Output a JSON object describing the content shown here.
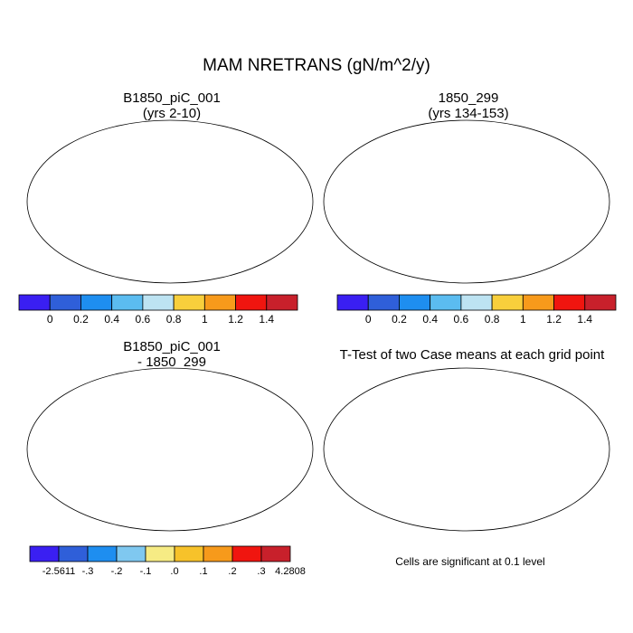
{
  "figure": {
    "title": "MAM NRETRANS (gN/m^2/y)"
  },
  "panels": [
    {
      "id": "a",
      "title_line1": "B1850_piC_001",
      "title_line2": "(yrs 2-10)"
    },
    {
      "id": "b",
      "title_line1": "1850_299",
      "title_line2": "(yrs 134-153)"
    },
    {
      "id": "c",
      "title_line1": "B1850_piC_001",
      "title_line2": "- 1850_299"
    },
    {
      "id": "d",
      "title_line1": "T-Test of two Case means at each grid point",
      "title_line2": ""
    }
  ],
  "colorbar_main": {
    "colors": [
      "#3a1ff2",
      "#2f5fd9",
      "#1e8ef0",
      "#5bbcf0",
      "#bde3f2",
      "#f8cf3c",
      "#f79a1b",
      "#f0150f",
      "#c8202b"
    ],
    "labels": [
      "0",
      "0.2",
      "0.4",
      "0.6",
      "0.8",
      "1",
      "1.2",
      "1.4"
    ]
  },
  "colorbar_diff": {
    "colors": [
      "#3a1ff2",
      "#2f5fd9",
      "#1e8ef0",
      "#7fc8f0",
      "#f6eb84",
      "#f7c22a",
      "#f79a1b",
      "#f0150f",
      "#c8202b"
    ],
    "labels": [
      "-2.5611",
      "-.3",
      "-.2",
      "-.1",
      ".0",
      ".1",
      ".2",
      ".3",
      "4.2808"
    ]
  },
  "significance_note": "Cells are significant at 0.1 level",
  "map_colors": {
    "ocean": "#ffffff",
    "land_main": "#2f5fd9",
    "tropics_hot": "#f0150f",
    "tropics_warm": "#f79a1b",
    "diff_base": "#f6eb84",
    "diff_blue": "#7fc8f0",
    "sig": "#f0150f"
  }
}
